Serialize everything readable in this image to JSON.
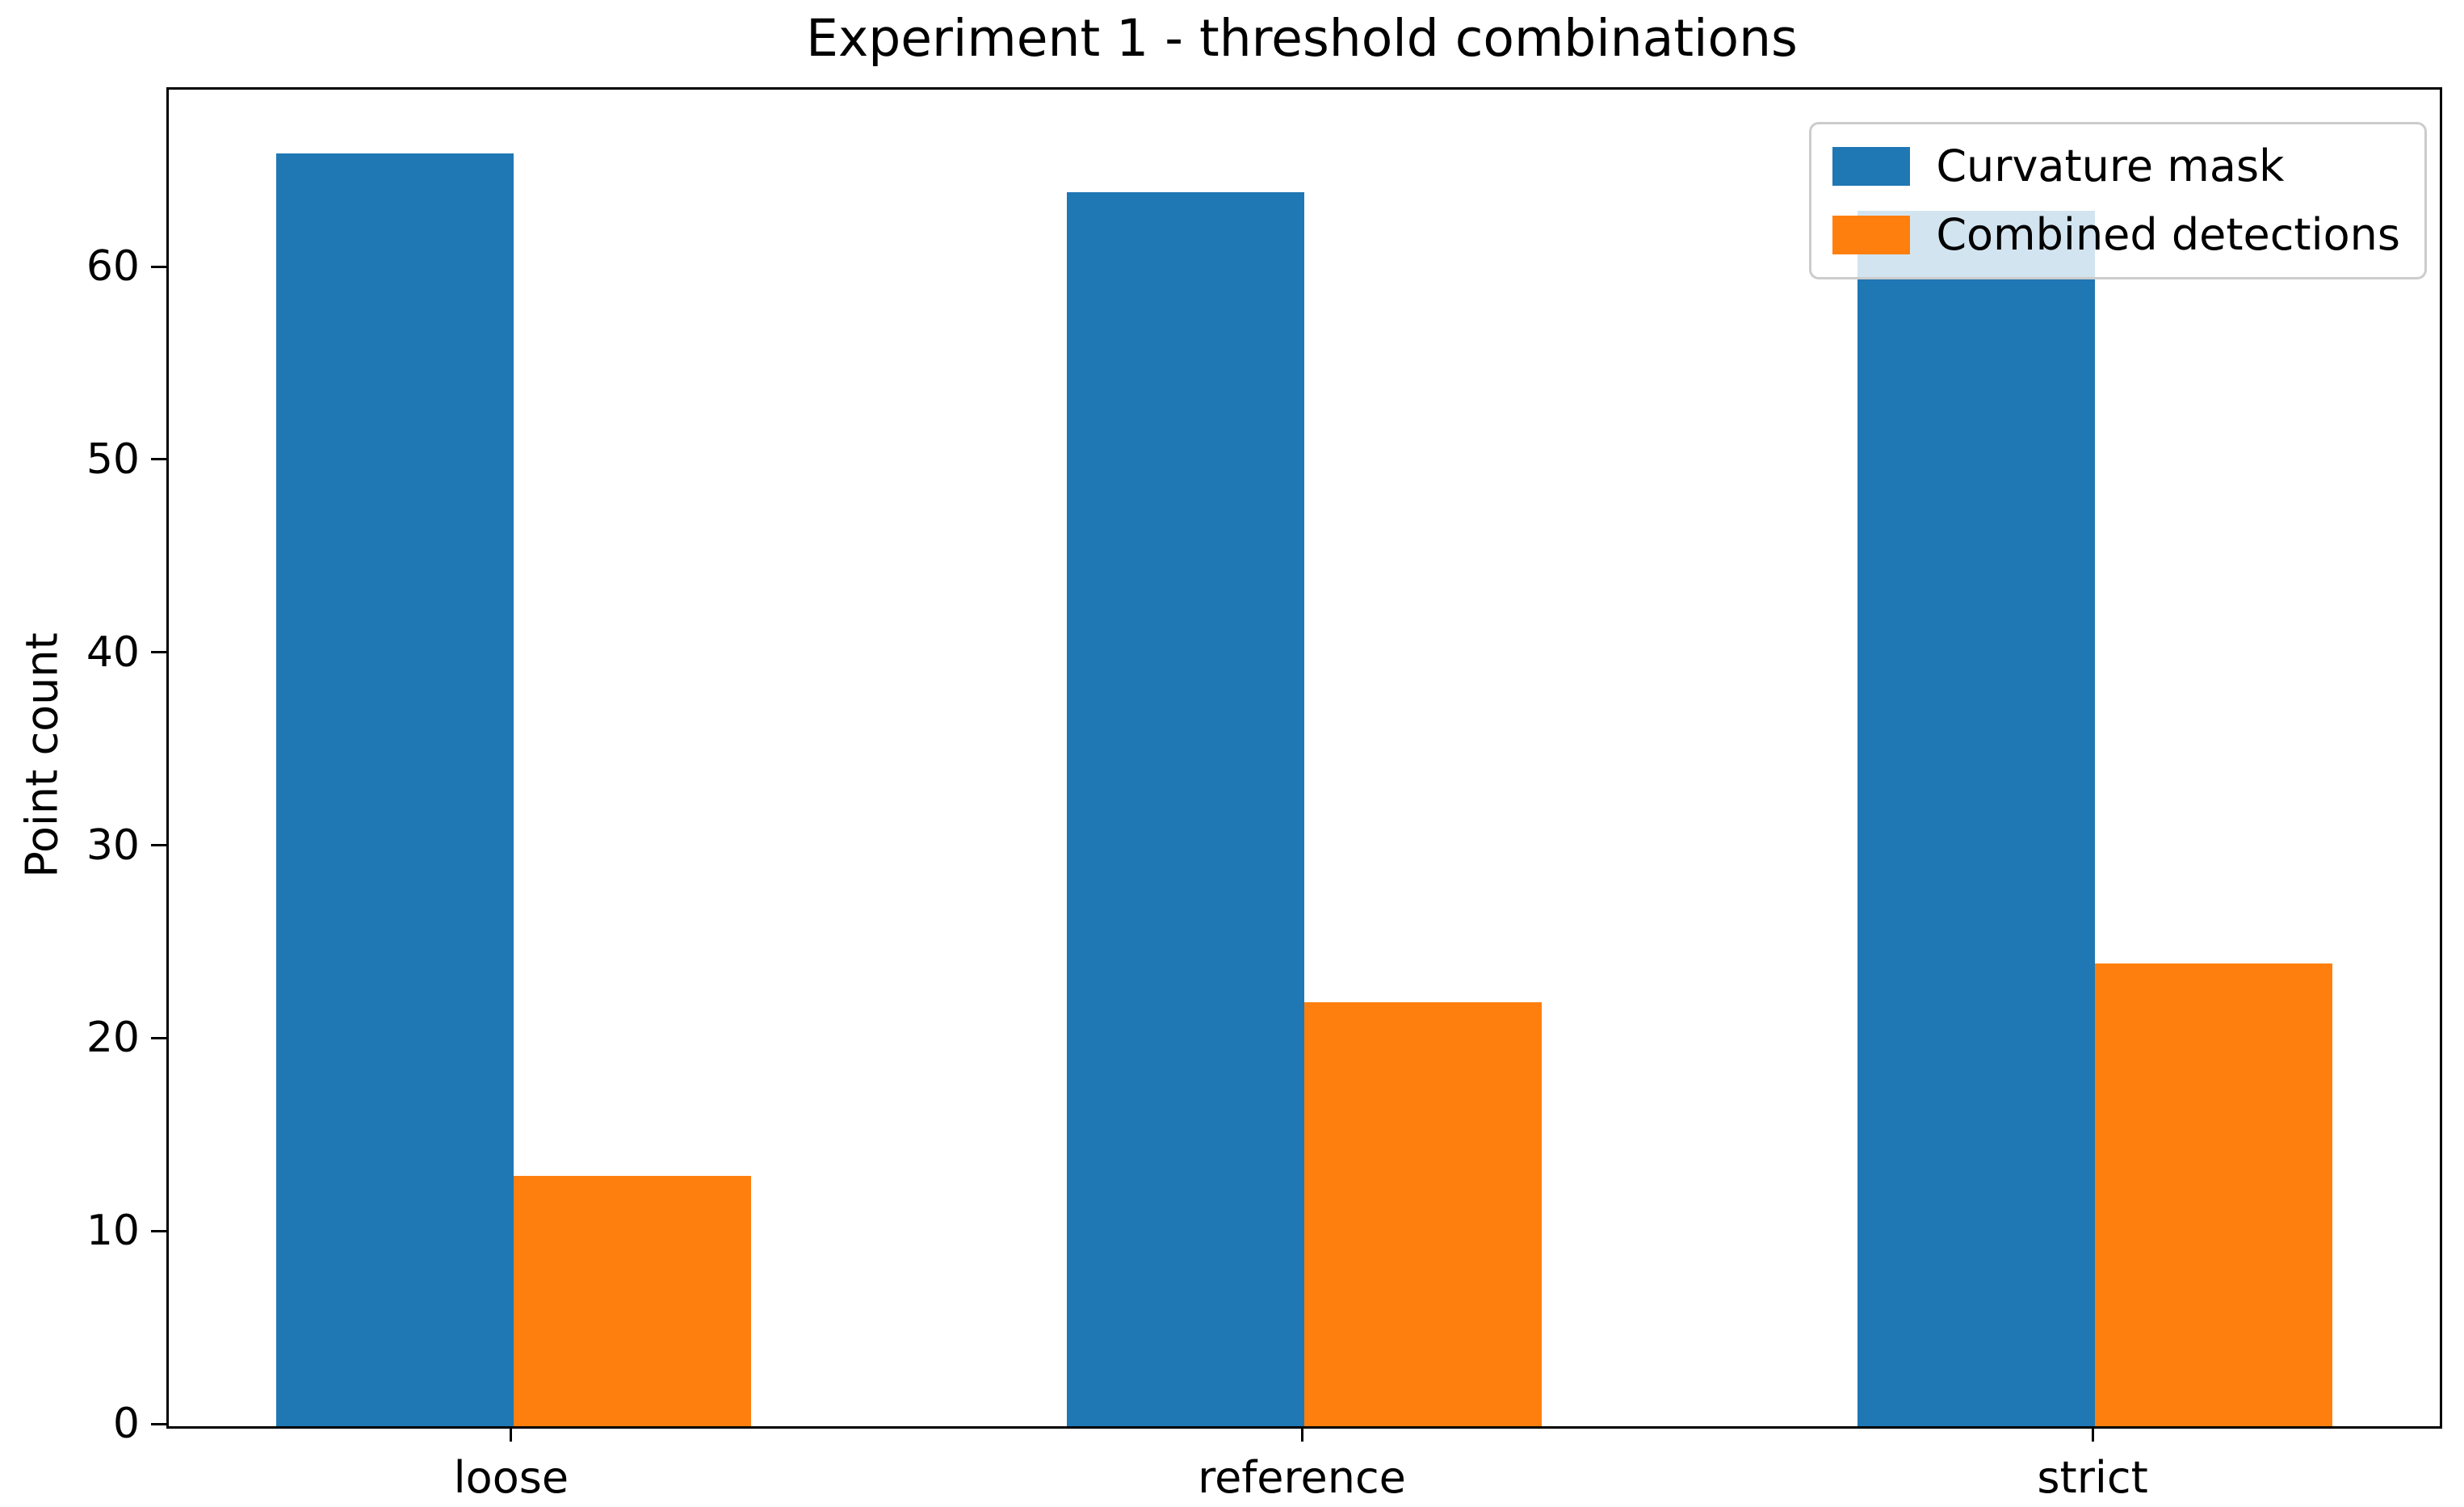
{
  "chart_data": {
    "type": "bar",
    "title": "Experiment 1 - threshold combinations",
    "ylabel": "Point count",
    "xlabel": "",
    "categories": [
      "loose",
      "reference",
      "strict"
    ],
    "series": [
      {
        "name": "Curvature mask",
        "color": "#1f77b4",
        "values": [
          66,
          64,
          63
        ]
      },
      {
        "name": "Combined detections",
        "color": "#ff7f0e",
        "values": [
          13,
          22,
          24
        ]
      }
    ],
    "yticks": [
      0,
      10,
      20,
      30,
      40,
      50,
      60
    ],
    "ylim": [
      0,
      69.3
    ],
    "xlim": [
      -0.436,
      2.436
    ],
    "bar_width": 0.3,
    "group_left_offsets": [
      -0.3,
      0
    ],
    "legend_position": "upper right",
    "grid": false,
    "background_color": "#ffffff",
    "axis_color": "#000000",
    "legend_border_color": "#cccccc"
  }
}
